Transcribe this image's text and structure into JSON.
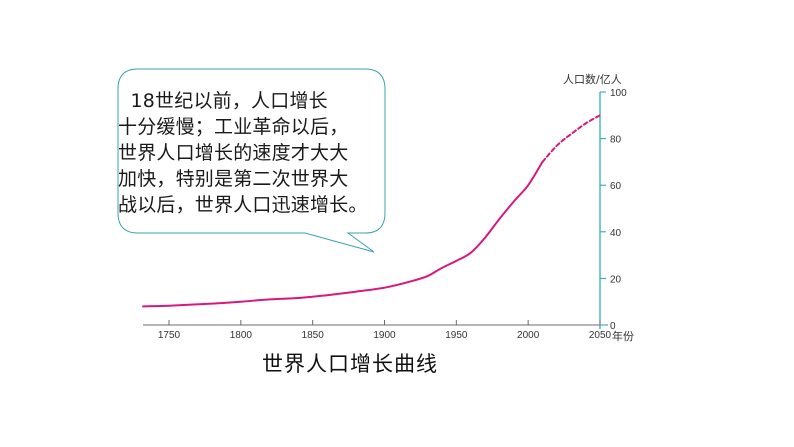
{
  "callout": {
    "text": "  18世纪以前，人口增长\n十分缓慢；工业革命以后，\n世界人口增长的速度才大大\n加快，特别是第二次世界大\n战以后，世界人口迅速增长。"
  },
  "colors": {
    "line": "#d6197f",
    "y_axis": "#1fa6b3",
    "x_axis": "#6d6d6d",
    "bubble_border": "#3aa3b0"
  },
  "chart_data": {
    "type": "line",
    "title": "世界人口增长曲线",
    "xlabel": "年份",
    "ylabel": "人口数/亿人",
    "xlim": [
      1732,
      2050
    ],
    "ylim": [
      0,
      100
    ],
    "x_ticks": [
      1750,
      1800,
      1850,
      1900,
      1950,
      2000,
      2050
    ],
    "y_ticks": [
      0,
      20,
      40,
      60,
      80,
      100
    ],
    "grid": false,
    "y_axis_position": "right",
    "series": [
      {
        "style": "solid",
        "x": [
          1732,
          1750,
          1780,
          1800,
          1820,
          1840,
          1860,
          1880,
          1900,
          1920,
          1930,
          1940,
          1950,
          1960,
          1970,
          1980,
          1990,
          2000,
          2010
        ],
        "y": [
          8.0,
          8.3,
          9.2,
          10.0,
          11.0,
          11.6,
          12.8,
          14.3,
          16.0,
          19.0,
          21.0,
          24.5,
          27.5,
          31.0,
          37.5,
          45.5,
          53.0,
          60.0,
          70.0
        ]
      },
      {
        "style": "dashed",
        "x": [
          2010,
          2020,
          2030,
          2040,
          2050
        ],
        "y": [
          70.0,
          77.0,
          82.0,
          86.5,
          90.0
        ]
      }
    ]
  }
}
